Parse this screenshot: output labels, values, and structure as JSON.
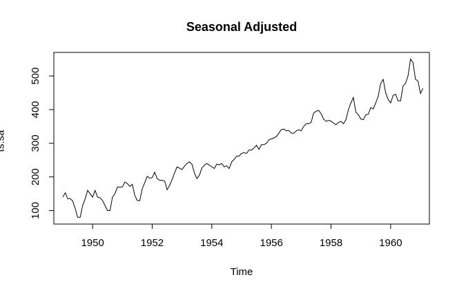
{
  "chart_data": {
    "type": "line",
    "title": "Seasonal Adjusted",
    "xlabel": "Time",
    "ylabel": "ts.sa",
    "xlim": [
      1948.7,
      1961.3
    ],
    "ylim": [
      60,
      570
    ],
    "xticks": [
      1950,
      1952,
      1954,
      1956,
      1958,
      1960
    ],
    "yticks": [
      100,
      200,
      300,
      400,
      500
    ],
    "grid": false,
    "legend": "none",
    "line_color": "#000000",
    "series": [
      {
        "start": 1949,
        "frequency": 12,
        "values": [
          140,
          153,
          135,
          136,
          128,
          106,
          80,
          80,
          115,
          135,
          160,
          150,
          140,
          160,
          140,
          138,
          130,
          115,
          100,
          100,
          140,
          150,
          170,
          170,
          170,
          185,
          180,
          172,
          178,
          145,
          130,
          130,
          165,
          183,
          202,
          196,
          198,
          214,
          195,
          190,
          190,
          188,
          162,
          175,
          192,
          212,
          230,
          226,
          222,
          232,
          240,
          245,
          238,
          212,
          195,
          205,
          226,
          235,
          240,
          235,
          230,
          225,
          238,
          236,
          240,
          230,
          233,
          225,
          245,
          252,
          262,
          262,
          270,
          272,
          270,
          280,
          280,
          286,
          294,
          282,
          296,
          296,
          300,
          310,
          313,
          316,
          320,
          330,
          341,
          342,
          337,
          338,
          330,
          330,
          337,
          340,
          337,
          350,
          358,
          358,
          362,
          390,
          395,
          398,
          388,
          372,
          365,
          368,
          366,
          360,
          355,
          362,
          365,
          358,
          370,
          400,
          420,
          436,
          392,
          385,
          372,
          370,
          385,
          386,
          406,
          402,
          420,
          440,
          478,
          490,
          450,
          430,
          420,
          442,
          446,
          426,
          426,
          470,
          478,
          500,
          550,
          540,
          490,
          485,
          448,
          463
        ]
      }
    ]
  }
}
